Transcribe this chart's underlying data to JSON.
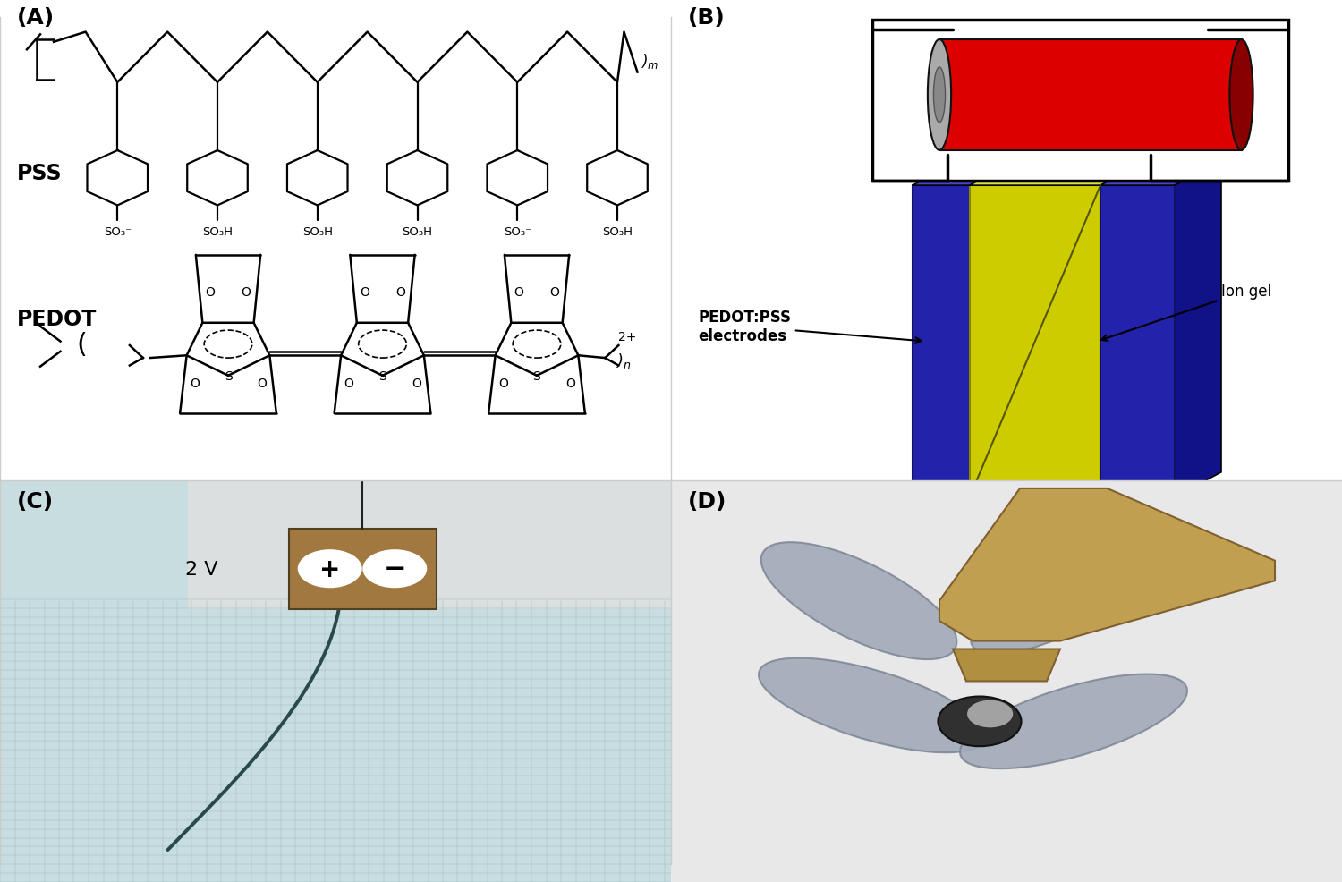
{
  "panel_labels": [
    "(A)",
    "(B)",
    "(C)",
    "(D)"
  ],
  "panel_label_fontsize": 18,
  "background_color": "#ffffff",
  "pss_label": "PSS",
  "pedot_label": "PEDOT",
  "pedot_pss_label": "PEDOT:PSS\nelectrodes",
  "ion_gel_label": "Ion gel",
  "voltage_label": "2 V",
  "groups": [
    "SO₃⁻",
    "SO₃H",
    "SO₃H",
    "SO₃H",
    "SO₃⁻",
    "SO₃H"
  ],
  "battery_color": "#dd0000",
  "battery_gray": "#aaaaaa",
  "electrode_color": "#2222aa",
  "electrode_dark": "#111188",
  "electrode_top": "#4444cc",
  "iongel_color": "#cccc00",
  "iongel_dark": "#aaaa00",
  "iongel_top": "#eeee00",
  "grid_bg": "#c8dde0",
  "grid_line": "#9bbcc0",
  "connector_color": "#a07840",
  "robot_color": "#2d5050",
  "dragonfly_body": "#c09050",
  "dragonfly_wing": "#b0b8c0",
  "dragonfly_ball_light": "#c0c0c0",
  "dragonfly_ball_dark": "#202020",
  "panel_divider_color": "#000000"
}
